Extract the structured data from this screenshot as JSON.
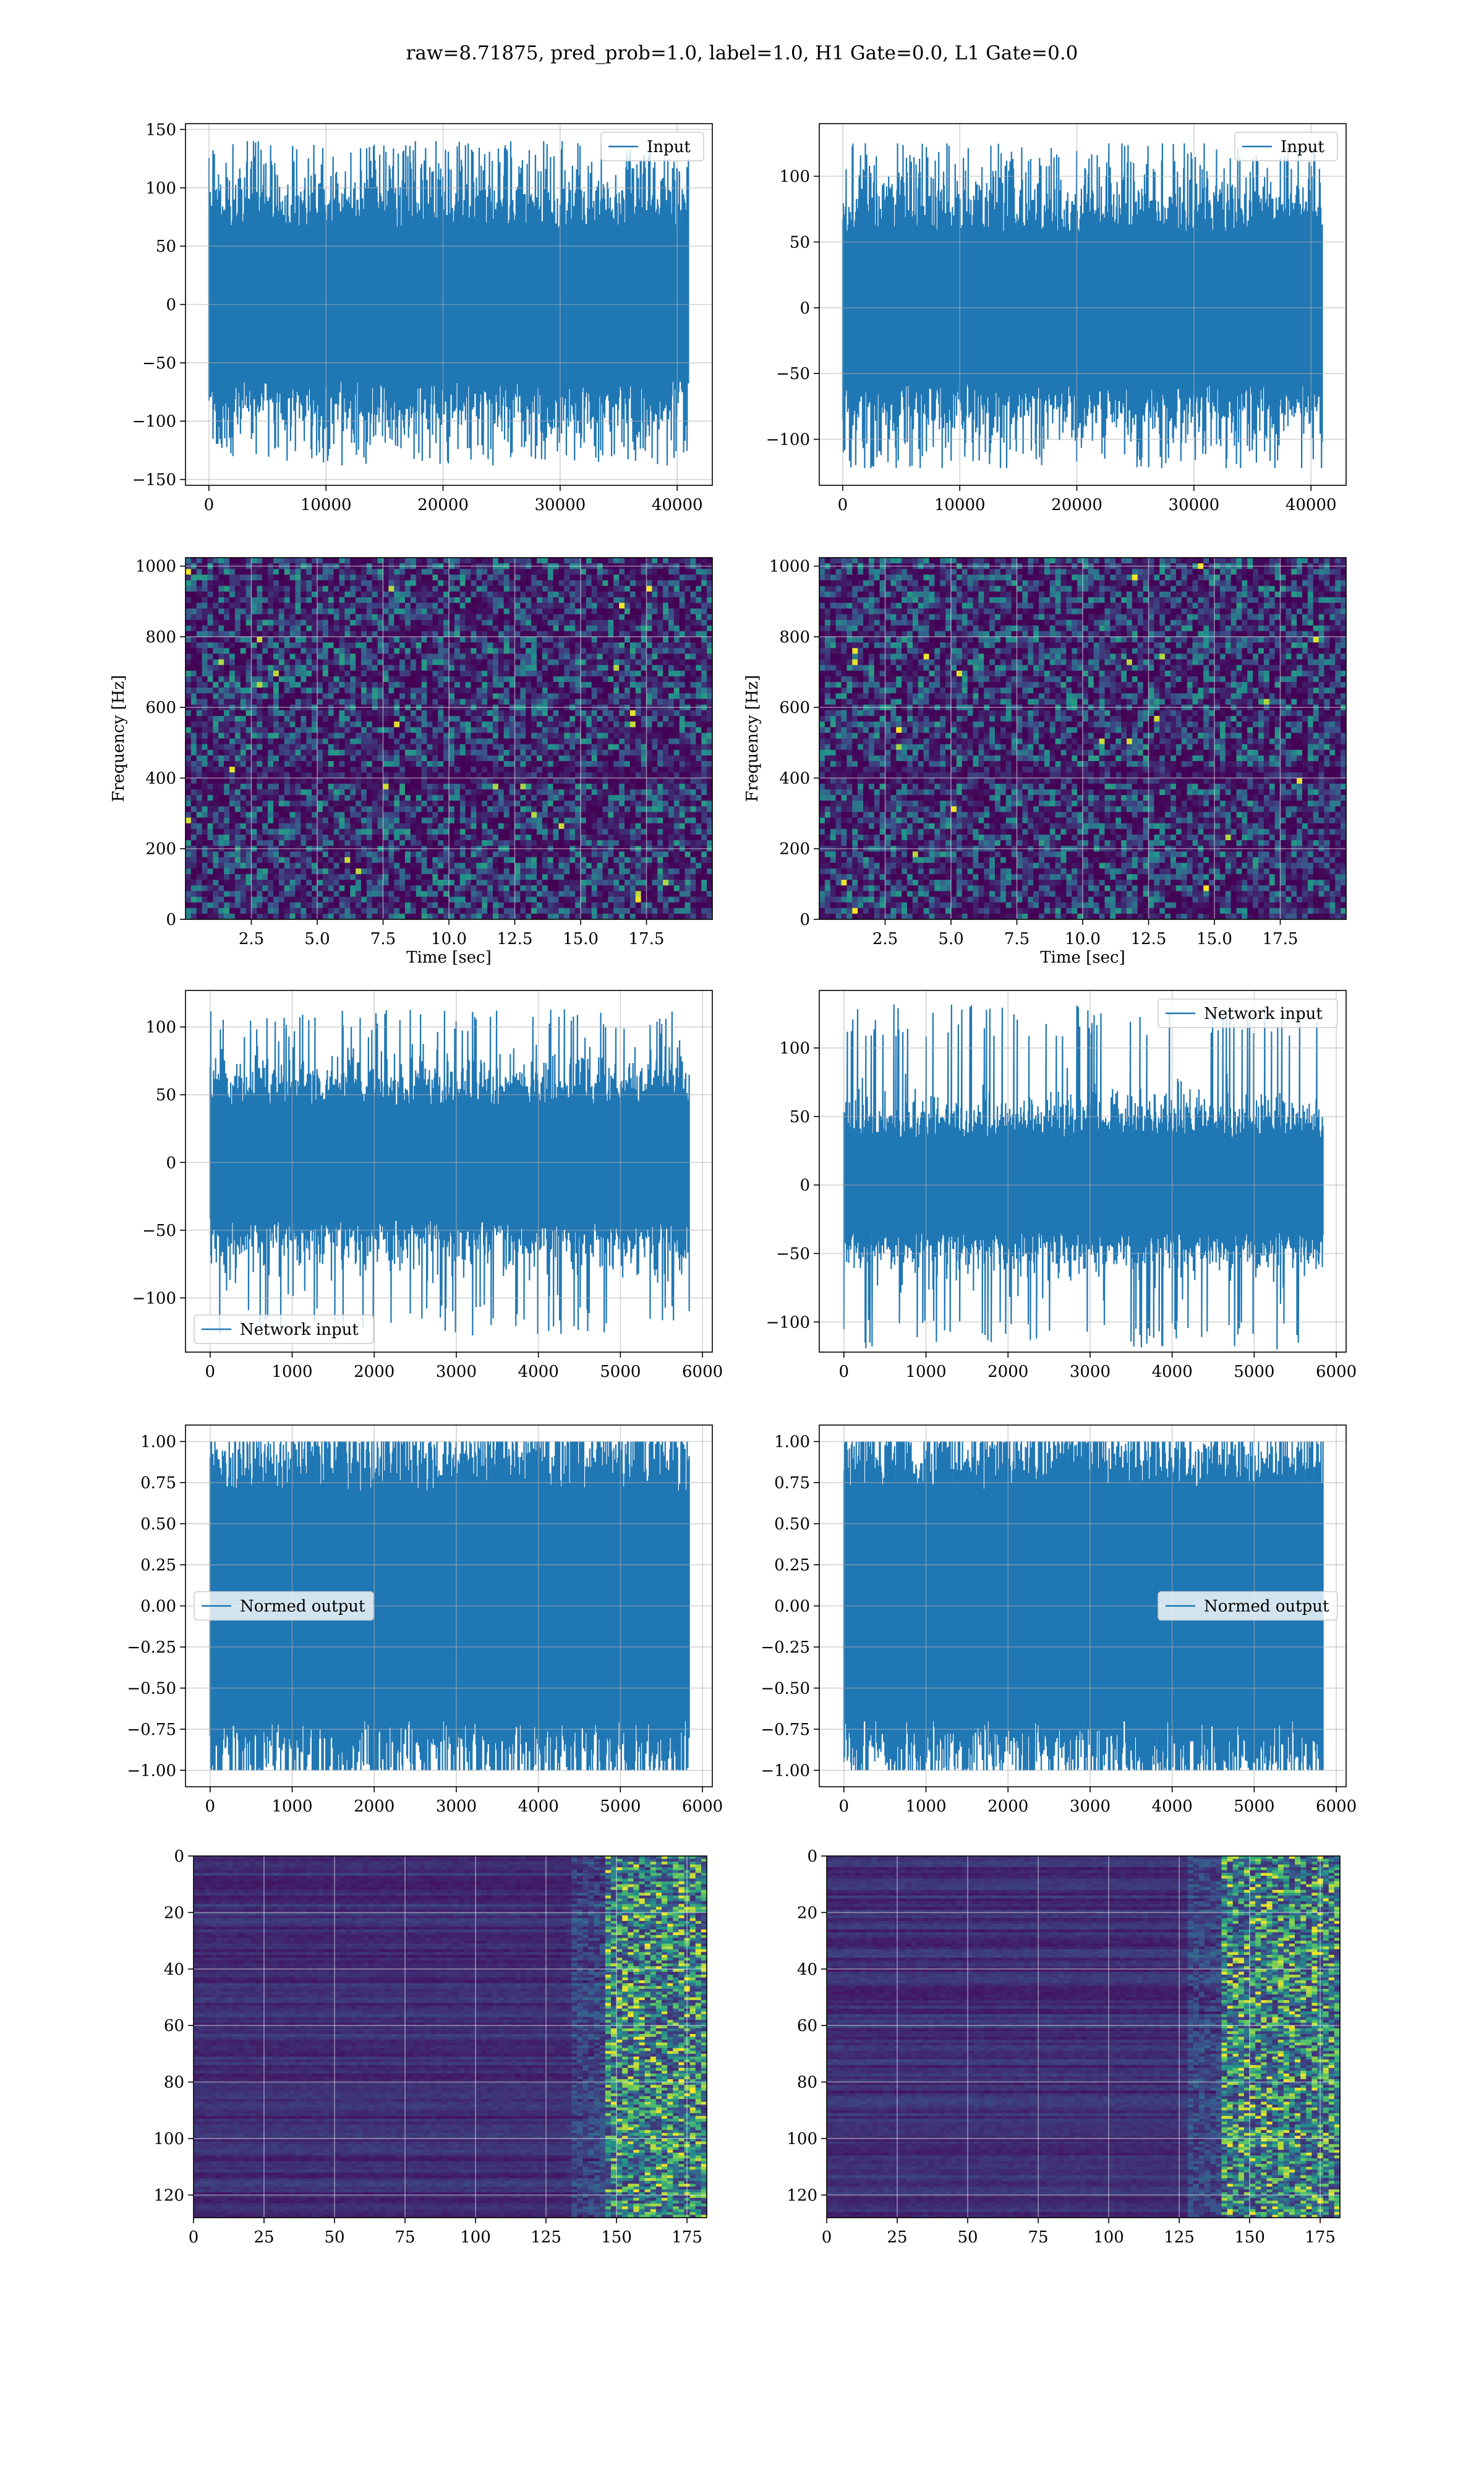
{
  "figure": {
    "title": "raw=8.71875, pred_prob=1.0, label=1.0, H1 Gate=0.0, L1 Gate=0.0"
  },
  "colors": {
    "line": "#1f77b4",
    "grid": "#b0b0b0",
    "viridis_low": "#440154",
    "viridis_mid": "#3b528b",
    "viridis_teal": "#21918c",
    "viridis_green": "#5ec962",
    "viridis_high": "#fde725"
  },
  "chart_data": [
    {
      "id": "input-left",
      "type": "line",
      "legend": [
        "Input"
      ],
      "legend_loc": "upper right",
      "xlim": [
        -2000,
        43000
      ],
      "ylim": [
        -155,
        155
      ],
      "xticks": [
        0,
        10000,
        20000,
        30000,
        40000
      ],
      "xtick_labels": [
        "0",
        "10000",
        "20000",
        "30000",
        "40000"
      ],
      "yticks": [
        -150,
        -100,
        -50,
        0,
        50,
        100,
        150
      ],
      "ytick_labels": [
        "−150",
        "−100",
        "−50",
        "0",
        "50",
        "100",
        "150"
      ],
      "grid": true,
      "series": [
        {
          "name": "Input",
          "x_range": [
            0,
            40959
          ],
          "envelope_pos": 140,
          "envelope_neg": -138,
          "typical_peak": 85
        }
      ]
    },
    {
      "id": "input-right",
      "type": "line",
      "legend": [
        "Input"
      ],
      "legend_loc": "upper right",
      "xlim": [
        -2000,
        43000
      ],
      "ylim": [
        -135,
        140
      ],
      "xticks": [
        0,
        10000,
        20000,
        30000,
        40000
      ],
      "xtick_labels": [
        "0",
        "10000",
        "20000",
        "30000",
        "40000"
      ],
      "yticks": [
        -100,
        -50,
        0,
        50,
        100
      ],
      "ytick_labels": [
        "−100",
        "−50",
        "0",
        "50",
        "100"
      ],
      "grid": true,
      "series": [
        {
          "name": "Input",
          "x_range": [
            0,
            40959
          ],
          "envelope_pos": 125,
          "envelope_neg": -122,
          "typical_peak": 75
        }
      ]
    },
    {
      "id": "spectrogram-left",
      "type": "heatmap",
      "xlabel": "Time [sec]",
      "ylabel": "Frequency [Hz]",
      "xlim": [
        0,
        20
      ],
      "ylim": [
        0,
        1024
      ],
      "xticks": [
        2.5,
        5.0,
        7.5,
        10.0,
        12.5,
        15.0,
        17.5
      ],
      "xtick_labels": [
        "2.5",
        "5.0",
        "7.5",
        "10.0",
        "12.5",
        "15.0",
        "17.5"
      ],
      "yticks": [
        0,
        200,
        400,
        600,
        800,
        1000
      ],
      "ytick_labels": [
        "0",
        "200",
        "400",
        "600",
        "800",
        "1000"
      ],
      "grid": true,
      "colormap": "viridis"
    },
    {
      "id": "spectrogram-right",
      "type": "heatmap",
      "xlabel": "Time [sec]",
      "ylabel": "Frequency [Hz]",
      "xlim": [
        0,
        20
      ],
      "ylim": [
        0,
        1024
      ],
      "xticks": [
        2.5,
        5.0,
        7.5,
        10.0,
        12.5,
        15.0,
        17.5
      ],
      "xtick_labels": [
        "2.5",
        "5.0",
        "7.5",
        "10.0",
        "12.5",
        "15.0",
        "17.5"
      ],
      "yticks": [
        0,
        200,
        400,
        600,
        800,
        1000
      ],
      "ytick_labels": [
        "0",
        "200",
        "400",
        "600",
        "800",
        "1000"
      ],
      "grid": true,
      "colormap": "viridis"
    },
    {
      "id": "network-input-left",
      "type": "line",
      "legend": [
        "Network input"
      ],
      "legend_loc": "lower left",
      "xlim": [
        -300,
        6120
      ],
      "ylim": [
        -140,
        127
      ],
      "xticks": [
        0,
        1000,
        2000,
        3000,
        4000,
        5000,
        6000
      ],
      "xtick_labels": [
        "0",
        "1000",
        "2000",
        "3000",
        "4000",
        "5000",
        "6000"
      ],
      "yticks": [
        -100,
        -50,
        0,
        50,
        100
      ],
      "ytick_labels": [
        "−100",
        "−50",
        "0",
        "50",
        "100"
      ],
      "grid": true,
      "series": [
        {
          "name": "Network input",
          "x_range": [
            0,
            5838
          ],
          "envelope_pos": 113,
          "envelope_neg": -128,
          "typical_peak": 55
        }
      ]
    },
    {
      "id": "network-input-right",
      "type": "line",
      "legend": [
        "Network input"
      ],
      "legend_loc": "upper right",
      "xlim": [
        -300,
        6120
      ],
      "ylim": [
        -122,
        142
      ],
      "xticks": [
        0,
        1000,
        2000,
        3000,
        4000,
        5000,
        6000
      ],
      "xtick_labels": [
        "0",
        "1000",
        "2000",
        "3000",
        "4000",
        "5000",
        "6000"
      ],
      "yticks": [
        -100,
        -50,
        0,
        50,
        100
      ],
      "ytick_labels": [
        "−100",
        "−50",
        "0",
        "50",
        "100"
      ],
      "grid": true,
      "series": [
        {
          "name": "Network input",
          "x_range": [
            0,
            5838
          ],
          "envelope_pos": 132,
          "envelope_neg": -120,
          "typical_peak": 45
        }
      ]
    },
    {
      "id": "normed-output-left",
      "type": "line",
      "legend": [
        "Normed output"
      ],
      "legend_loc": "center left",
      "xlim": [
        -300,
        6120
      ],
      "ylim": [
        -1.1,
        1.1
      ],
      "xticks": [
        0,
        1000,
        2000,
        3000,
        4000,
        5000,
        6000
      ],
      "xtick_labels": [
        "0",
        "1000",
        "2000",
        "3000",
        "4000",
        "5000",
        "6000"
      ],
      "yticks": [
        -1.0,
        -0.75,
        -0.5,
        -0.25,
        0.0,
        0.25,
        0.5,
        0.75,
        1.0
      ],
      "ytick_labels": [
        "−1.00",
        "−0.75",
        "−0.50",
        "−0.25",
        "0.00",
        "0.25",
        "0.50",
        "0.75",
        "1.00"
      ],
      "grid": true,
      "series": [
        {
          "name": "Normed output",
          "x_range": [
            0,
            5838
          ],
          "envelope_pos": 1.0,
          "envelope_neg": -1.0,
          "typical_peak": 0.9
        }
      ]
    },
    {
      "id": "normed-output-right",
      "type": "line",
      "legend": [
        "Normed output"
      ],
      "legend_loc": "center right",
      "xlim": [
        -300,
        6120
      ],
      "ylim": [
        -1.1,
        1.1
      ],
      "xticks": [
        0,
        1000,
        2000,
        3000,
        4000,
        5000,
        6000
      ],
      "xtick_labels": [
        "0",
        "1000",
        "2000",
        "3000",
        "4000",
        "5000",
        "6000"
      ],
      "yticks": [
        -1.0,
        -0.75,
        -0.5,
        -0.25,
        0.0,
        0.25,
        0.5,
        0.75,
        1.0
      ],
      "ytick_labels": [
        "−1.00",
        "−0.75",
        "−0.50",
        "−0.25",
        "0.00",
        "0.25",
        "0.50",
        "0.75",
        "1.00"
      ],
      "grid": true,
      "series": [
        {
          "name": "Normed output",
          "x_range": [
            0,
            5838
          ],
          "envelope_pos": 1.0,
          "envelope_neg": -1.0,
          "typical_peak": 0.9
        }
      ]
    },
    {
      "id": "feature-map-left",
      "type": "heatmap",
      "xlim": [
        0,
        182
      ],
      "ylim": [
        128,
        0
      ],
      "xticks": [
        0,
        25,
        50,
        75,
        100,
        125,
        150,
        175
      ],
      "xtick_labels": [
        "0",
        "25",
        "50",
        "75",
        "100",
        "125",
        "150",
        "175"
      ],
      "yticks": [
        0,
        20,
        40,
        60,
        80,
        100,
        120
      ],
      "ytick_labels": [
        "0",
        "20",
        "40",
        "60",
        "80",
        "100",
        "120"
      ],
      "grid": true,
      "colormap": "viridis",
      "rows": 128,
      "cols": 182,
      "active_from_col": 145
    },
    {
      "id": "feature-map-right",
      "type": "heatmap",
      "xlim": [
        0,
        182
      ],
      "ylim": [
        128,
        0
      ],
      "xticks": [
        0,
        25,
        50,
        75,
        100,
        125,
        150,
        175
      ],
      "xtick_labels": [
        "0",
        "25",
        "50",
        "75",
        "100",
        "125",
        "150",
        "175"
      ],
      "yticks": [
        0,
        20,
        40,
        60,
        80,
        100,
        120
      ],
      "ytick_labels": [
        "0",
        "20",
        "40",
        "60",
        "80",
        "100",
        "120"
      ],
      "grid": true,
      "colormap": "viridis",
      "rows": 128,
      "cols": 182,
      "active_from_col": 140
    }
  ]
}
